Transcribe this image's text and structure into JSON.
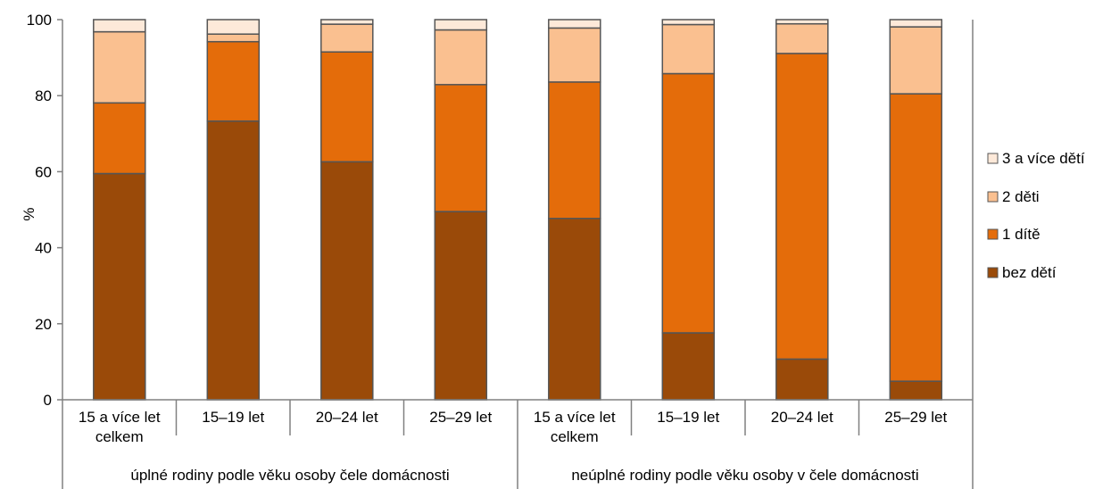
{
  "chart_data": {
    "type": "bar",
    "stacked": true,
    "title": "",
    "xlabel": "",
    "ylabel": "%",
    "ylim": [
      0,
      100
    ],
    "yticks": [
      0,
      20,
      40,
      60,
      80,
      100
    ],
    "grid": false,
    "legend_position": "right",
    "categories": [
      [
        "15 a více let",
        "celkem"
      ],
      [
        "15–19 let"
      ],
      [
        "20–24 let"
      ],
      [
        "25–29 let"
      ],
      [
        "15 a více let",
        "celkem"
      ],
      [
        "15–19 let"
      ],
      [
        "20–24 let"
      ],
      [
        "25–29 let"
      ]
    ],
    "groups": [
      {
        "label": "úplné rodiny podle věku osoby čele domácnosti",
        "start": 0,
        "end": 3
      },
      {
        "label": "neúplné rodiny podle věku osoby v čele domácnosti",
        "start": 4,
        "end": 7
      }
    ],
    "series": [
      {
        "name": "bez dětí",
        "color": "#9a4a09",
        "values": [
          59.5,
          73.3,
          62.6,
          49.5,
          47.7,
          17.6,
          10.7,
          4.9
        ]
      },
      {
        "name": "1 dítě",
        "color": "#e46c0a",
        "values": [
          18.6,
          20.9,
          28.9,
          33.4,
          35.9,
          68.2,
          80.4,
          75.6
        ]
      },
      {
        "name": "2 děti",
        "color": "#fac090",
        "values": [
          18.7,
          2.0,
          7.3,
          14.4,
          14.2,
          12.9,
          7.8,
          17.6
        ]
      },
      {
        "name": "3 a více dětí",
        "color": "#fde9d9",
        "values": [
          3.2,
          3.8,
          1.2,
          2.7,
          2.2,
          1.3,
          1.1,
          1.9
        ]
      }
    ],
    "legend_order": [
      "3 a více dětí",
      "2 děti",
      "1 dítě",
      "bez dětí"
    ]
  }
}
